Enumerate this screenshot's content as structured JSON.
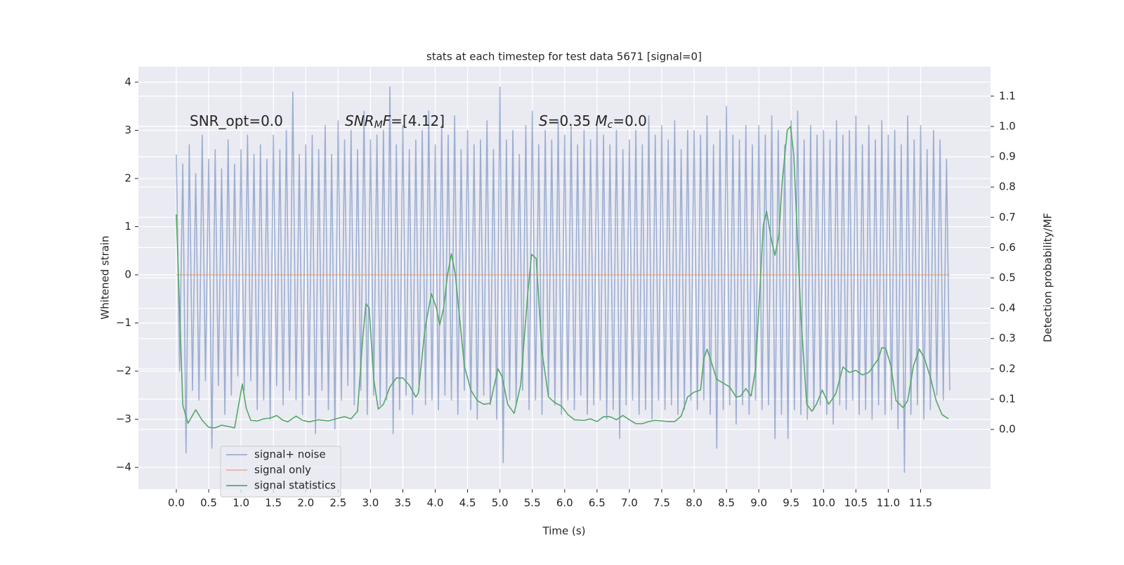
{
  "chart_data": {
    "type": "line",
    "title": "stats at each timestep for test data 5671 [signal=0]",
    "xlabel": "Time (s)",
    "ylabel": "Whitened strain",
    "y2label": "Detection probability/MF",
    "xlim": [
      -0.586,
      12.58
    ],
    "ylim": [
      -4.45,
      4.32
    ],
    "y2lim": [
      -0.197,
      1.197
    ],
    "grid": true,
    "legend_loc": "lower left",
    "xticks": [
      {
        "value": 0,
        "label": "0.0"
      },
      {
        "value": 0.5,
        "label": "0.5"
      },
      {
        "value": 1,
        "label": "1.0"
      },
      {
        "value": 1.5,
        "label": "1.5"
      },
      {
        "value": 2,
        "label": "2.0"
      },
      {
        "value": 2.5,
        "label": "2.5"
      },
      {
        "value": 3,
        "label": "3.0"
      },
      {
        "value": 3.5,
        "label": "3.5"
      },
      {
        "value": 4,
        "label": "4.0"
      },
      {
        "value": 4.5,
        "label": "4.5"
      },
      {
        "value": 5,
        "label": "5.0"
      },
      {
        "value": 5.5,
        "label": "5.5"
      },
      {
        "value": 6,
        "label": "6.0"
      },
      {
        "value": 6.5,
        "label": "6.5"
      },
      {
        "value": 7,
        "label": "7.0"
      },
      {
        "value": 7.5,
        "label": "7.5"
      },
      {
        "value": 8,
        "label": "8.0"
      },
      {
        "value": 8.5,
        "label": "8.5"
      },
      {
        "value": 9,
        "label": "9.0"
      },
      {
        "value": 9.5,
        "label": "9.5"
      },
      {
        "value": 10,
        "label": "10.0"
      },
      {
        "value": 10.5,
        "label": "10.5"
      },
      {
        "value": 11,
        "label": "11.0"
      },
      {
        "value": 11.5,
        "label": "11.5"
      }
    ],
    "yticks": [
      {
        "value": -4,
        "label": "−4"
      },
      {
        "value": -3,
        "label": "−3"
      },
      {
        "value": -2,
        "label": "−2"
      },
      {
        "value": -1,
        "label": "−1"
      },
      0,
      1,
      2,
      3,
      4
    ],
    "y2ticks": [
      {
        "value": 0,
        "label": "0.0"
      },
      0.1,
      0.2,
      0.3,
      0.4,
      0.5,
      0.6,
      0.7,
      0.8,
      0.9,
      {
        "value": 1,
        "label": "1.0"
      },
      1.1
    ],
    "annotations": [
      {
        "segments": [
          {
            "text": "SNR_opt=0.0"
          }
        ]
      },
      {
        "segments": [
          {
            "text": "SNR",
            "italic": true
          },
          {
            "text": "M",
            "italic": true,
            "sub": true
          },
          {
            "text": "F",
            "italic": true
          },
          {
            "text": "=[4.12]"
          }
        ]
      },
      {
        "segments": [
          {
            "text": "S",
            "italic": true
          },
          {
            "text": "=0.35   "
          },
          {
            "text": "M",
            "italic": true
          },
          {
            "text": "c",
            "italic": true,
            "sub": true
          },
          {
            "text": "=0.0"
          }
        ]
      }
    ],
    "series": [
      {
        "name": "signal+ noise",
        "color": "#4c72b0",
        "alpha": 0.5,
        "axis": "y",
        "x": [
          0,
          0.05,
          0.1,
          0.15,
          0.2,
          0.25,
          0.3,
          0.35,
          0.4,
          0.45,
          0.5,
          0.55,
          0.6,
          0.65,
          0.7,
          0.75,
          0.8,
          0.85,
          0.9,
          0.95,
          1,
          1.05,
          1.1,
          1.15,
          1.2,
          1.25,
          1.3,
          1.35,
          1.4,
          1.45,
          1.5,
          1.55,
          1.6,
          1.65,
          1.7,
          1.75,
          1.8,
          1.85,
          1.9,
          1.95,
          2,
          2.05,
          2.1,
          2.15,
          2.2,
          2.25,
          2.3,
          2.35,
          2.4,
          2.45,
          2.5,
          2.55,
          2.6,
          2.65,
          2.7,
          2.75,
          2.8,
          2.85,
          2.9,
          2.95,
          3,
          3.05,
          3.1,
          3.15,
          3.2,
          3.25,
          3.3,
          3.35,
          3.4,
          3.45,
          3.5,
          3.55,
          3.6,
          3.65,
          3.7,
          3.75,
          3.8,
          3.85,
          3.9,
          3.95,
          4,
          4.05,
          4.1,
          4.15,
          4.2,
          4.25,
          4.3,
          4.35,
          4.4,
          4.45,
          4.5,
          4.55,
          4.6,
          4.65,
          4.7,
          4.75,
          4.8,
          4.85,
          4.9,
          4.95,
          5,
          5.05,
          5.1,
          5.15,
          5.2,
          5.25,
          5.3,
          5.35,
          5.4,
          5.45,
          5.5,
          5.55,
          5.6,
          5.65,
          5.7,
          5.75,
          5.8,
          5.85,
          5.9,
          5.95,
          6,
          6.05,
          6.1,
          6.15,
          6.2,
          6.25,
          6.3,
          6.35,
          6.4,
          6.45,
          6.5,
          6.55,
          6.6,
          6.65,
          6.7,
          6.75,
          6.8,
          6.85,
          6.9,
          6.95,
          7,
          7.05,
          7.1,
          7.15,
          7.2,
          7.25,
          7.3,
          7.35,
          7.4,
          7.45,
          7.5,
          7.55,
          7.6,
          7.65,
          7.7,
          7.75,
          7.8,
          7.85,
          7.9,
          7.95,
          8,
          8.05,
          8.1,
          8.15,
          8.2,
          8.25,
          8.3,
          8.35,
          8.4,
          8.45,
          8.5,
          8.55,
          8.6,
          8.65,
          8.7,
          8.75,
          8.8,
          8.85,
          8.9,
          8.95,
          9,
          9.05,
          9.1,
          9.15,
          9.2,
          9.25,
          9.3,
          9.35,
          9.4,
          9.45,
          9.5,
          9.55,
          9.6,
          9.65,
          9.7,
          9.75,
          9.8,
          9.85,
          9.9,
          9.95,
          10,
          10.05,
          10.1,
          10.15,
          10.2,
          10.25,
          10.3,
          10.35,
          10.4,
          10.45,
          10.5,
          10.55,
          10.6,
          10.65,
          10.7,
          10.75,
          10.8,
          10.85,
          10.9,
          10.95,
          11,
          11.05,
          11.1,
          11.15,
          11.2,
          11.25,
          11.3,
          11.35,
          11.4,
          11.45,
          11.5,
          11.55,
          11.6,
          11.65,
          11.7,
          11.75,
          11.8,
          11.85,
          11.9,
          11.95
        ],
        "values": [
          2.5,
          -2.0,
          2.3,
          -3.7,
          2.7,
          -2.4,
          2.1,
          -2.6,
          2.9,
          -2.2,
          2.4,
          -3.6,
          2.6,
          -2.3,
          2.2,
          -2.9,
          2.8,
          -2.5,
          2.3,
          -2.1,
          2.6,
          -2.4,
          2.9,
          -2.2,
          2.5,
          -2.8,
          2.7,
          -2.6,
          2.4,
          -3.0,
          2.9,
          -2.3,
          2.6,
          -2.7,
          3.0,
          -2.4,
          3.8,
          -2.6,
          2.5,
          -2.9,
          2.7,
          -2.5,
          2.9,
          -3.3,
          2.6,
          -2.4,
          3.1,
          -2.8,
          2.5,
          -3.2,
          3.2,
          -2.6,
          2.8,
          -2.3,
          3.0,
          -2.7,
          2.6,
          -2.4,
          3.4,
          -2.9,
          2.8,
          -2.5,
          2.9,
          -2.7,
          3.0,
          -2.6,
          3.9,
          -3.3,
          2.7,
          -2.8,
          3.1,
          -2.5,
          2.6,
          -2.9,
          2.8,
          -2.4,
          3.0,
          -2.7,
          3.4,
          -2.6,
          2.7,
          -2.8,
          3.1,
          -2.5,
          2.9,
          -2.6,
          3.3,
          -2.9,
          2.6,
          -2.4,
          3.0,
          -2.8,
          2.7,
          -3.0,
          2.8,
          -2.5,
          3.2,
          -2.7,
          2.6,
          -3.0,
          3.9,
          -3.9,
          2.8,
          -2.6,
          3.0,
          -2.7,
          2.5,
          -2.4,
          3.1,
          -2.8,
          3.4,
          -2.6,
          2.7,
          -2.9,
          3.0,
          -2.5,
          2.8,
          -2.7,
          3.2,
          -2.9,
          2.9,
          -2.6,
          3.1,
          -2.8,
          2.7,
          -2.5,
          3.0,
          -2.9,
          2.8,
          -2.7,
          3.1,
          -2.6,
          2.9,
          -3.0,
          2.7,
          -2.8,
          3.0,
          -3.4,
          2.6,
          -2.7,
          2.8,
          -2.6,
          3.0,
          -2.9,
          2.7,
          -2.8,
          3.3,
          -3.0,
          2.9,
          -2.6,
          3.1,
          -2.8,
          2.8,
          -2.7,
          3.2,
          -2.9,
          2.6,
          -2.8,
          3.0,
          -2.6,
          3.0,
          -2.8,
          2.9,
          -2.6,
          3.3,
          -2.9,
          2.7,
          -3.6,
          3.0,
          -2.8,
          3.5,
          -2.7,
          2.9,
          -3.1,
          2.8,
          -2.7,
          3.1,
          -2.9,
          2.7,
          -2.6,
          3.1,
          -2.8,
          2.9,
          -2.7,
          3.3,
          -3.4,
          3.0,
          -2.9,
          2.7,
          -3.4,
          3.2,
          -2.8,
          3.4,
          -2.9,
          2.8,
          -3.0,
          3.1,
          -2.8,
          2.9,
          -2.7,
          3.0,
          -2.9,
          2.8,
          -3.1,
          3.2,
          -2.7,
          2.9,
          -2.8,
          3.0,
          -2.6,
          3.3,
          -2.9,
          2.7,
          -2.8,
          3.1,
          -3.0,
          2.8,
          -2.7,
          3.2,
          -2.9,
          2.9,
          -2.8,
          3.0,
          -3.2,
          2.7,
          -4.1,
          3.3,
          -2.9,
          2.8,
          -2.7,
          3.1,
          -3.0,
          2.6,
          -2.8,
          3.0,
          -2.5,
          2.8,
          -2.6,
          2.4,
          -2.4
        ]
      },
      {
        "name": "signal only",
        "color": "#dd8452",
        "alpha": 0.5,
        "axis": "y",
        "x": [
          0,
          11.95
        ],
        "values": [
          0,
          0
        ]
      },
      {
        "name": "signal statistics",
        "color": "#55a868",
        "alpha": 1,
        "axis": "y2",
        "x": [
          0,
          0.05,
          0.1,
          0.18,
          0.3,
          0.4,
          0.5,
          0.6,
          0.7,
          0.8,
          0.9,
          0.97,
          1.02,
          1.08,
          1.15,
          1.25,
          1.35,
          1.45,
          1.55,
          1.65,
          1.72,
          1.85,
          1.95,
          2.05,
          2.2,
          2.35,
          2.5,
          2.6,
          2.7,
          2.8,
          2.88,
          2.93,
          2.98,
          3.05,
          3.12,
          3.2,
          3.3,
          3.4,
          3.5,
          3.6,
          3.7,
          3.74,
          3.84,
          3.94,
          4.02,
          4.07,
          4.13,
          4.19,
          4.25,
          4.31,
          4.45,
          4.55,
          4.65,
          4.75,
          4.85,
          4.97,
          5.03,
          5.12,
          5.22,
          5.32,
          5.43,
          5.49,
          5.56,
          5.65,
          5.75,
          5.85,
          5.95,
          6.05,
          6.15,
          6.3,
          6.4,
          6.5,
          6.6,
          6.7,
          6.8,
          6.9,
          7.0,
          7.1,
          7.2,
          7.3,
          7.4,
          7.5,
          7.6,
          7.7,
          7.8,
          7.9,
          8.0,
          8.1,
          8.15,
          8.2,
          8.27,
          8.35,
          8.45,
          8.55,
          8.65,
          8.72,
          8.8,
          8.88,
          8.95,
          9.07,
          9.12,
          9.19,
          9.25,
          9.31,
          9.36,
          9.44,
          9.49,
          9.54,
          9.65,
          9.74,
          9.82,
          9.89,
          9.98,
          10.08,
          10.19,
          10.3,
          10.4,
          10.5,
          10.6,
          10.7,
          10.85,
          10.9,
          10.96,
          11.04,
          11.12,
          11.23,
          11.3,
          11.39,
          11.48,
          11.56,
          11.66,
          11.74,
          11.83,
          11.93
        ],
        "values": [
          0.71,
          0.4,
          0.08,
          0.02,
          0.065,
          0.03,
          0.007,
          0.005,
          0.014,
          0.01,
          0.005,
          0.09,
          0.15,
          0.07,
          0.03,
          0.028,
          0.035,
          0.037,
          0.046,
          0.03,
          0.025,
          0.044,
          0.03,
          0.025,
          0.032,
          0.028,
          0.037,
          0.042,
          0.035,
          0.06,
          0.3,
          0.415,
          0.4,
          0.165,
          0.067,
          0.083,
          0.14,
          0.17,
          0.17,
          0.146,
          0.107,
          0.12,
          0.33,
          0.448,
          0.4,
          0.345,
          0.4,
          0.51,
          0.58,
          0.513,
          0.21,
          0.13,
          0.095,
          0.083,
          0.086,
          0.2,
          0.176,
          0.083,
          0.053,
          0.146,
          0.45,
          0.578,
          0.564,
          0.257,
          0.107,
          0.088,
          0.077,
          0.049,
          0.032,
          0.03,
          0.035,
          0.026,
          0.042,
          0.042,
          0.032,
          0.046,
          0.032,
          0.019,
          0.019,
          0.026,
          0.03,
          0.028,
          0.026,
          0.026,
          0.044,
          0.107,
          0.123,
          0.13,
          0.234,
          0.265,
          0.22,
          0.165,
          0.153,
          0.14,
          0.107,
          0.11,
          0.135,
          0.11,
          0.2,
          0.675,
          0.72,
          0.63,
          0.575,
          0.64,
          0.815,
          0.988,
          1.0,
          0.907,
          0.374,
          0.083,
          0.06,
          0.083,
          0.13,
          0.083,
          0.118,
          0.206,
          0.188,
          0.195,
          0.18,
          0.188,
          0.234,
          0.27,
          0.268,
          0.21,
          0.095,
          0.072,
          0.095,
          0.21,
          0.265,
          0.234,
          0.165,
          0.095,
          0.049,
          0.035
        ]
      }
    ]
  }
}
